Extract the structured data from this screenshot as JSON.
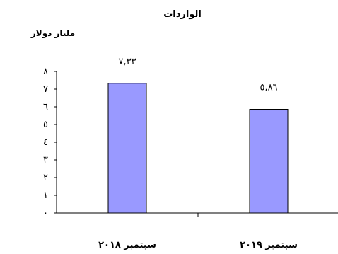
{
  "chart_data": {
    "type": "bar",
    "title": "الواردات",
    "ylabel": "مليار دولار",
    "xlabel": "",
    "categories": [
      "سبتمبر ٢٠١٨",
      "سبتمبر ٢٠١٩"
    ],
    "values": [
      7.33,
      5.86
    ],
    "value_labels": [
      "٧,٣٣",
      "٥,٨٦"
    ],
    "ylim": [
      0,
      8
    ],
    "y_ticks": [
      0,
      1,
      2,
      3,
      4,
      5,
      6,
      7,
      8
    ],
    "y_tick_labels": [
      "٠",
      "١",
      "٢",
      "٣",
      "٤",
      "٥",
      "٦",
      "٧",
      "٨"
    ],
    "bar_color": "#9999ff",
    "grid": false,
    "legend": "none"
  }
}
